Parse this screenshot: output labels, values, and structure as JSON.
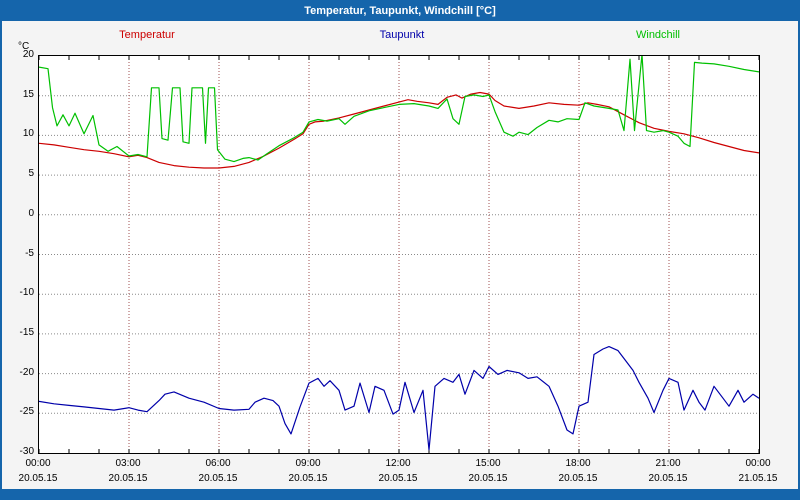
{
  "colors": {
    "accent": "#1565ab",
    "plot_bg": "#ffffff",
    "frame_bg": "#f4f4f4"
  },
  "chart_data": {
    "type": "line",
    "title": "Temperatur, Taupunkt, Windchill [°C]",
    "unit": "°C",
    "ylim": [
      -30,
      20
    ],
    "ytick_step": 5,
    "xlim_hours": [
      0,
      24
    ],
    "grid": "dotted",
    "legend_position": "top",
    "xticks": [
      {
        "hour": 0,
        "label": "00:00",
        "date": "20.05.15"
      },
      {
        "hour": 3,
        "label": "03:00",
        "date": "20.05.15"
      },
      {
        "hour": 6,
        "label": "06:00",
        "date": "20.05.15"
      },
      {
        "hour": 9,
        "label": "09:00",
        "date": "20.05.15"
      },
      {
        "hour": 12,
        "label": "12:00",
        "date": "20.05.15"
      },
      {
        "hour": 15,
        "label": "15:00",
        "date": "20.05.15"
      },
      {
        "hour": 18,
        "label": "18:00",
        "date": "20.05.15"
      },
      {
        "hour": 21,
        "label": "21:00",
        "date": "20.05.15"
      },
      {
        "hour": 24,
        "label": "00:00",
        "date": "21.05.15"
      }
    ],
    "series": [
      {
        "name": "Temperatur",
        "color": "#cc0000",
        "points": [
          [
            0,
            9.0
          ],
          [
            0.5,
            8.8
          ],
          [
            1,
            8.5
          ],
          [
            1.5,
            8.2
          ],
          [
            2,
            8.0
          ],
          [
            2.5,
            7.7
          ],
          [
            3,
            7.3
          ],
          [
            3.3,
            7.5
          ],
          [
            3.6,
            7.2
          ],
          [
            4,
            6.6
          ],
          [
            4.5,
            6.2
          ],
          [
            5,
            6.0
          ],
          [
            5.5,
            5.9
          ],
          [
            6,
            5.9
          ],
          [
            6.5,
            6.1
          ],
          [
            7,
            6.6
          ],
          [
            7.5,
            7.4
          ],
          [
            8,
            8.4
          ],
          [
            8.5,
            9.5
          ],
          [
            8.8,
            10.2
          ],
          [
            9,
            11.4
          ],
          [
            9.2,
            11.7
          ],
          [
            9.5,
            11.8
          ],
          [
            10,
            12.2
          ],
          [
            10.5,
            12.7
          ],
          [
            11,
            13.2
          ],
          [
            11.5,
            13.7
          ],
          [
            12,
            14.2
          ],
          [
            12.3,
            14.5
          ],
          [
            12.6,
            14.3
          ],
          [
            13,
            14.1
          ],
          [
            13.3,
            13.9
          ],
          [
            13.6,
            14.8
          ],
          [
            13.9,
            15.1
          ],
          [
            14.1,
            14.7
          ],
          [
            14.4,
            15.2
          ],
          [
            14.7,
            15.4
          ],
          [
            15,
            15.2
          ],
          [
            15.2,
            14.4
          ],
          [
            15.5,
            13.7
          ],
          [
            16,
            13.4
          ],
          [
            16.5,
            13.7
          ],
          [
            17,
            14.1
          ],
          [
            17.5,
            13.9
          ],
          [
            18,
            13.8
          ],
          [
            18.3,
            14.1
          ],
          [
            18.6,
            13.9
          ],
          [
            19,
            13.6
          ],
          [
            19.5,
            12.6
          ],
          [
            20,
            11.6
          ],
          [
            20.5,
            10.9
          ],
          [
            21,
            10.5
          ],
          [
            21.5,
            10.2
          ],
          [
            22,
            9.7
          ],
          [
            22.5,
            9.1
          ],
          [
            23,
            8.6
          ],
          [
            23.5,
            8.1
          ],
          [
            24,
            7.8
          ]
        ]
      },
      {
        "name": "Taupunkt",
        "color": "#0000aa",
        "points": [
          [
            0,
            -23.5
          ],
          [
            0.5,
            -23.8
          ],
          [
            1,
            -24.0
          ],
          [
            1.5,
            -24.2
          ],
          [
            2,
            -24.4
          ],
          [
            2.5,
            -24.6
          ],
          [
            3,
            -24.3
          ],
          [
            3.3,
            -24.6
          ],
          [
            3.6,
            -24.8
          ],
          [
            4,
            -23.4
          ],
          [
            4.2,
            -22.6
          ],
          [
            4.5,
            -22.3
          ],
          [
            5,
            -23.1
          ],
          [
            5.5,
            -23.6
          ],
          [
            6,
            -24.4
          ],
          [
            6.5,
            -24.6
          ],
          [
            7,
            -24.5
          ],
          [
            7.2,
            -23.6
          ],
          [
            7.5,
            -23.1
          ],
          [
            7.8,
            -23.4
          ],
          [
            8,
            -24.1
          ],
          [
            8.2,
            -26.3
          ],
          [
            8.4,
            -27.6
          ],
          [
            8.7,
            -24.2
          ],
          [
            9,
            -21.2
          ],
          [
            9.3,
            -20.6
          ],
          [
            9.5,
            -21.6
          ],
          [
            9.7,
            -20.9
          ],
          [
            10,
            -22.1
          ],
          [
            10.2,
            -24.6
          ],
          [
            10.5,
            -24.1
          ],
          [
            10.7,
            -21.2
          ],
          [
            11,
            -24.9
          ],
          [
            11.2,
            -21.6
          ],
          [
            11.5,
            -22.1
          ],
          [
            11.8,
            -25.1
          ],
          [
            12,
            -24.6
          ],
          [
            12.2,
            -21.1
          ],
          [
            12.5,
            -24.9
          ],
          [
            12.8,
            -22.1
          ],
          [
            13,
            -29.6
          ],
          [
            13.2,
            -21.6
          ],
          [
            13.5,
            -20.6
          ],
          [
            13.8,
            -21.1
          ],
          [
            14,
            -20.1
          ],
          [
            14.2,
            -22.6
          ],
          [
            14.5,
            -19.6
          ],
          [
            14.8,
            -20.6
          ],
          [
            15,
            -19.1
          ],
          [
            15.3,
            -20.1
          ],
          [
            15.6,
            -19.6
          ],
          [
            16,
            -19.9
          ],
          [
            16.3,
            -20.6
          ],
          [
            16.6,
            -20.4
          ],
          [
            17,
            -21.6
          ],
          [
            17.3,
            -24.1
          ],
          [
            17.6,
            -27.1
          ],
          [
            17.8,
            -27.6
          ],
          [
            18,
            -24.1
          ],
          [
            18.3,
            -23.6
          ],
          [
            18.5,
            -17.6
          ],
          [
            18.8,
            -16.9
          ],
          [
            19,
            -16.6
          ],
          [
            19.3,
            -17.1
          ],
          [
            19.5,
            -18.1
          ],
          [
            19.8,
            -19.6
          ],
          [
            20,
            -21.1
          ],
          [
            20.3,
            -23.1
          ],
          [
            20.5,
            -24.9
          ],
          [
            20.8,
            -22.1
          ],
          [
            21,
            -20.6
          ],
          [
            21.3,
            -21.1
          ],
          [
            21.5,
            -24.6
          ],
          [
            21.8,
            -22.1
          ],
          [
            22,
            -23.6
          ],
          [
            22.2,
            -24.6
          ],
          [
            22.5,
            -21.6
          ],
          [
            22.8,
            -23.1
          ],
          [
            23,
            -24.1
          ],
          [
            23.3,
            -22.1
          ],
          [
            23.5,
            -23.6
          ],
          [
            23.8,
            -22.6
          ],
          [
            24,
            -23.1
          ]
        ]
      },
      {
        "name": "Windchill",
        "color": "#00c000",
        "points": [
          [
            0,
            18.6
          ],
          [
            0.3,
            18.4
          ],
          [
            0.45,
            13.5
          ],
          [
            0.6,
            11.2
          ],
          [
            0.8,
            12.6
          ],
          [
            1,
            11.2
          ],
          [
            1.2,
            12.8
          ],
          [
            1.5,
            10.2
          ],
          [
            1.8,
            12.5
          ],
          [
            2,
            8.8
          ],
          [
            2.3,
            8.0
          ],
          [
            2.6,
            8.6
          ],
          [
            3,
            7.4
          ],
          [
            3.3,
            7.6
          ],
          [
            3.6,
            7.3
          ],
          [
            3.75,
            16.0
          ],
          [
            4.0,
            16.0
          ],
          [
            4.1,
            9.6
          ],
          [
            4.3,
            9.4
          ],
          [
            4.45,
            16.0
          ],
          [
            4.7,
            16.0
          ],
          [
            4.8,
            9.2
          ],
          [
            5.0,
            9.0
          ],
          [
            5.1,
            16.0
          ],
          [
            5.45,
            16.0
          ],
          [
            5.55,
            9.0
          ],
          [
            5.65,
            16.0
          ],
          [
            5.85,
            16.0
          ],
          [
            5.95,
            8.2
          ],
          [
            6.2,
            7.0
          ],
          [
            6.5,
            6.7
          ],
          [
            6.8,
            7.1
          ],
          [
            7,
            7.2
          ],
          [
            7.3,
            6.9
          ],
          [
            7.6,
            7.7
          ],
          [
            8,
            8.7
          ],
          [
            8.5,
            9.7
          ],
          [
            8.8,
            10.4
          ],
          [
            9,
            11.7
          ],
          [
            9.3,
            12.0
          ],
          [
            9.6,
            11.8
          ],
          [
            10,
            12.1
          ],
          [
            10.2,
            11.4
          ],
          [
            10.5,
            12.4
          ],
          [
            11,
            13.1
          ],
          [
            11.5,
            13.5
          ],
          [
            12,
            13.9
          ],
          [
            12.5,
            14.0
          ],
          [
            13,
            13.7
          ],
          [
            13.3,
            13.4
          ],
          [
            13.6,
            14.6
          ],
          [
            13.8,
            12.1
          ],
          [
            14,
            11.4
          ],
          [
            14.2,
            14.9
          ],
          [
            14.5,
            15.1
          ],
          [
            14.8,
            14.9
          ],
          [
            15,
            15.1
          ],
          [
            15.2,
            13.0
          ],
          [
            15.5,
            10.4
          ],
          [
            15.8,
            9.9
          ],
          [
            16,
            10.4
          ],
          [
            16.3,
            10.1
          ],
          [
            16.6,
            11.0
          ],
          [
            17,
            11.9
          ],
          [
            17.3,
            11.7
          ],
          [
            17.6,
            12.1
          ],
          [
            18,
            12.0
          ],
          [
            18.2,
            14.1
          ],
          [
            18.5,
            13.7
          ],
          [
            19,
            13.4
          ],
          [
            19.3,
            13.2
          ],
          [
            19.5,
            10.6
          ],
          [
            19.7,
            19.6
          ],
          [
            19.85,
            10.6
          ],
          [
            20.1,
            20.2
          ],
          [
            20.25,
            10.6
          ],
          [
            20.5,
            10.4
          ],
          [
            20.8,
            10.6
          ],
          [
            21,
            10.4
          ],
          [
            21.3,
            9.9
          ],
          [
            21.5,
            9.0
          ],
          [
            21.7,
            8.6
          ],
          [
            21.85,
            19.2
          ],
          [
            22.1,
            19.1
          ],
          [
            22.5,
            19.0
          ],
          [
            23,
            18.7
          ],
          [
            23.5,
            18.3
          ],
          [
            24,
            18.0
          ]
        ]
      }
    ]
  }
}
